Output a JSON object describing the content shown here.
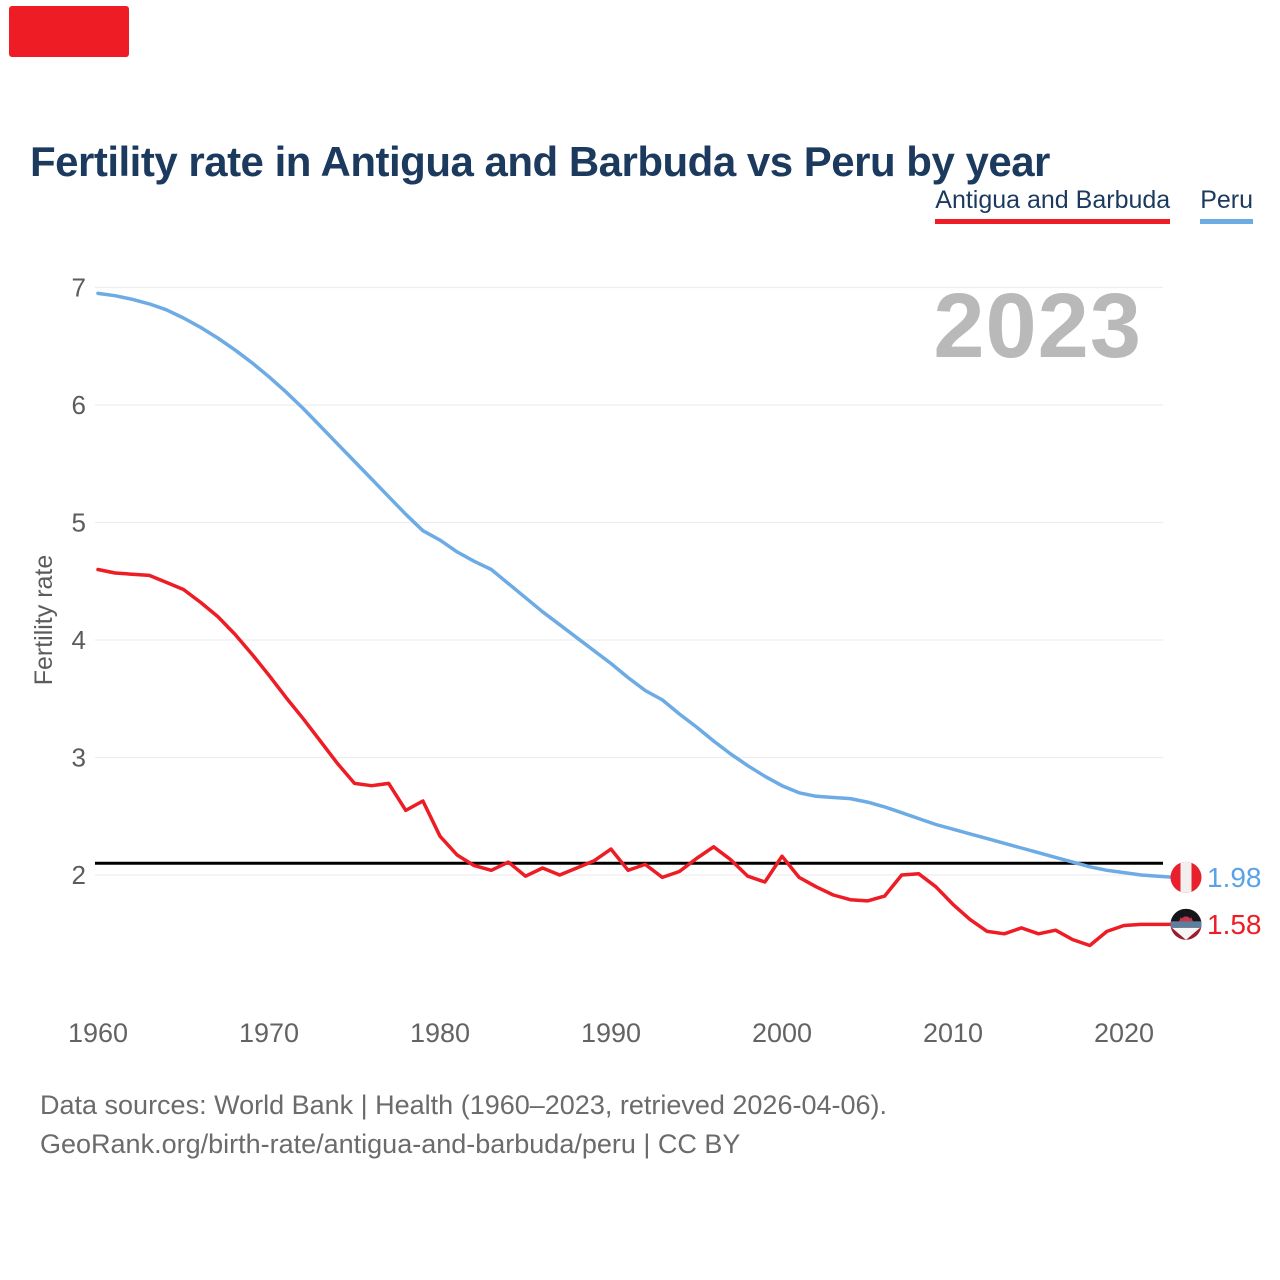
{
  "brand": {
    "color": "#ee1c24"
  },
  "title": {
    "text": "Fertility rate in Antigua and Barbuda vs Peru by year",
    "color": "#1c3a5e"
  },
  "legend": {
    "items": [
      {
        "label": "Antigua and Barbuda",
        "color": "#ee1c24"
      },
      {
        "label": "Peru",
        "color": "#6cabe3"
      }
    ]
  },
  "watermark": {
    "text": "2023",
    "color": "#b9b9b9"
  },
  "y_axis": {
    "label": "Fertility rate",
    "ticks": [
      7,
      6,
      5,
      4,
      3,
      2
    ],
    "color": "#5c5c5c"
  },
  "x_axis": {
    "ticks": [
      1960,
      1970,
      1980,
      1990,
      2000,
      2010,
      2020
    ],
    "color": "#636363"
  },
  "reference_line": {
    "value": 2.1,
    "color": "#000000"
  },
  "grid_color": "#ededed",
  "end_labels": [
    {
      "series": "Peru",
      "value": "1.98",
      "flag": "peru-flag-icon",
      "color": "#58a3e8"
    },
    {
      "series": "Antigua and Barbuda",
      "value": "1.58",
      "flag": "antigua-and-barbuda-flag-icon",
      "color": "#ee1c24"
    }
  ],
  "footer": {
    "line1": "Data sources: World Bank | Health (1960–2023, retrieved 2026-04-06).",
    "line2": "GeoRank.org/birth-rate/antigua-and-barbuda/peru | CC BY",
    "color": "#6b6b6b"
  },
  "chart_data": {
    "type": "line",
    "title": "Fertility rate in Antigua and Barbuda vs Peru by year",
    "xlabel": "",
    "ylabel": "Fertility rate",
    "xlim": [
      1960,
      2023
    ],
    "ylim": [
      1.1,
      7.3
    ],
    "grid": "horizontal",
    "legend_position": "top-right",
    "x": [
      1960,
      1961,
      1962,
      1963,
      1964,
      1965,
      1966,
      1967,
      1968,
      1969,
      1970,
      1971,
      1972,
      1973,
      1974,
      1975,
      1976,
      1977,
      1978,
      1979,
      1980,
      1981,
      1982,
      1983,
      1984,
      1985,
      1986,
      1987,
      1988,
      1989,
      1990,
      1991,
      1992,
      1993,
      1994,
      1995,
      1996,
      1997,
      1998,
      1999,
      2000,
      2001,
      2002,
      2003,
      2004,
      2005,
      2006,
      2007,
      2008,
      2009,
      2010,
      2011,
      2012,
      2013,
      2014,
      2015,
      2016,
      2017,
      2018,
      2019,
      2020,
      2021,
      2022,
      2023
    ],
    "series": [
      {
        "name": "Antigua and Barbuda",
        "color": "#ee1c24",
        "end_value": 1.58,
        "values": [
          4.6,
          4.57,
          4.56,
          4.55,
          4.49,
          4.43,
          4.32,
          4.2,
          4.05,
          3.88,
          3.7,
          3.51,
          3.33,
          3.14,
          2.95,
          2.78,
          2.76,
          2.78,
          2.55,
          2.63,
          2.33,
          2.17,
          2.08,
          2.04,
          2.11,
          1.99,
          2.06,
          2.0,
          2.06,
          2.12,
          2.22,
          2.04,
          2.09,
          1.98,
          2.03,
          2.14,
          2.24,
          2.13,
          1.99,
          1.94,
          2.16,
          1.98,
          1.9,
          1.83,
          1.79,
          1.78,
          1.82,
          2.0,
          2.01,
          1.9,
          1.75,
          1.62,
          1.52,
          1.5,
          1.55,
          1.5,
          1.53,
          1.45,
          1.4,
          1.52,
          1.57,
          1.58,
          1.58,
          1.58
        ]
      },
      {
        "name": "Peru",
        "color": "#6cabe3",
        "end_value": 1.98,
        "values": [
          6.95,
          6.93,
          6.9,
          6.86,
          6.81,
          6.74,
          6.66,
          6.57,
          6.47,
          6.36,
          6.24,
          6.11,
          5.97,
          5.82,
          5.67,
          5.52,
          5.37,
          5.22,
          5.07,
          4.93,
          4.85,
          4.75,
          4.67,
          4.6,
          4.48,
          4.36,
          4.24,
          4.13,
          4.02,
          3.91,
          3.8,
          3.68,
          3.57,
          3.49,
          3.37,
          3.26,
          3.14,
          3.03,
          2.93,
          2.84,
          2.76,
          2.7,
          2.67,
          2.66,
          2.65,
          2.62,
          2.58,
          2.53,
          2.48,
          2.43,
          2.39,
          2.35,
          2.31,
          2.27,
          2.23,
          2.19,
          2.15,
          2.11,
          2.07,
          2.04,
          2.02,
          2.0,
          1.99,
          1.98
        ]
      }
    ]
  }
}
